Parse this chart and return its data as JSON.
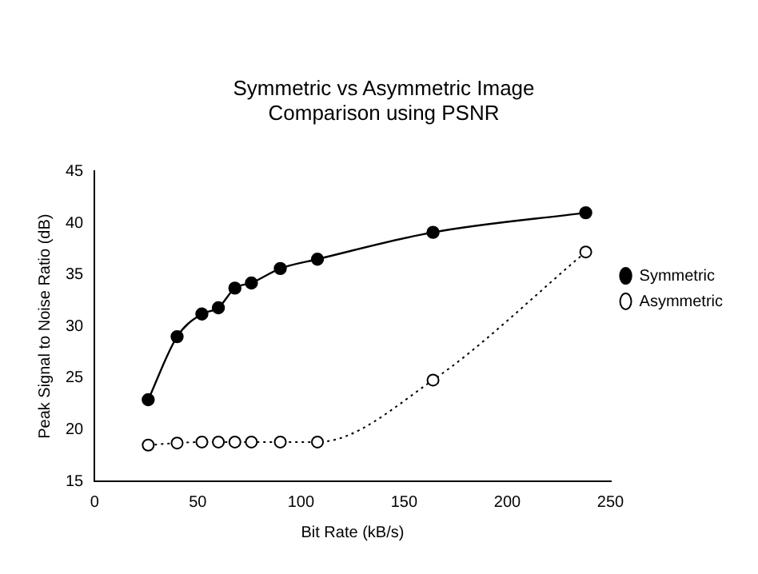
{
  "chart_data": {
    "type": "line",
    "title": "Symmetric vs Asymmetric Image\nComparison using PSNR",
    "xlabel": "Bit Rate (kB/s)",
    "ylabel": "Peak Signal to Noise Ratio (dB)",
    "series": [
      {
        "name": "Symmetric",
        "color": "#000000",
        "line_style": "solid",
        "x": [
          26,
          40,
          52,
          60,
          68,
          76,
          90,
          108,
          164,
          238
        ],
        "values": [
          22.9,
          29.0,
          31.2,
          31.8,
          33.7,
          34.2,
          35.6,
          36.5,
          39.1,
          41.0
        ]
      },
      {
        "name": "Asymmetric",
        "color": "#000000",
        "line_style": "dotted",
        "x": [
          26,
          40,
          52,
          60,
          68,
          76,
          90,
          108,
          164,
          238
        ],
        "values": [
          18.5,
          18.7,
          18.8,
          18.8,
          18.8,
          18.8,
          18.8,
          18.8,
          24.8,
          37.2
        ]
      }
    ],
    "xlim": [
      0,
      250
    ],
    "xticks": [
      0,
      50,
      100,
      150,
      200,
      250
    ],
    "ylim": [
      15,
      45
    ],
    "yticks": [
      15,
      20,
      25,
      30,
      35,
      40,
      45
    ],
    "grid": false,
    "legend": "right",
    "marker": "circle"
  }
}
